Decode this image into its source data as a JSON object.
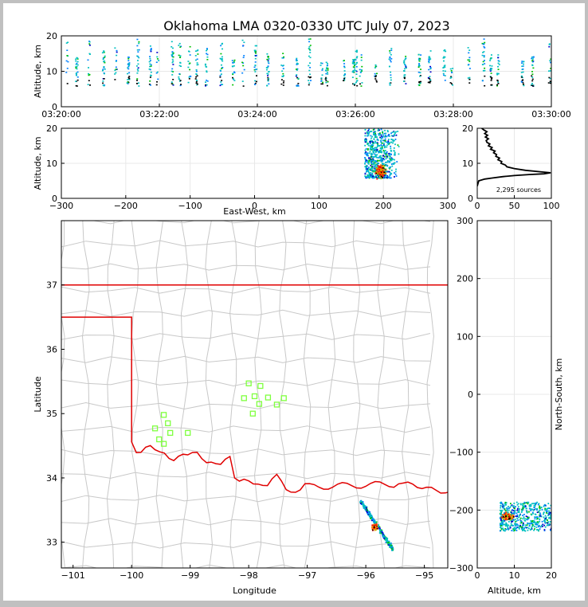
{
  "title": "Oklahoma LMA 0320-0330 UTC July 07, 2023",
  "colors": {
    "background": "#ffffff",
    "frame": "#c0c0c0",
    "state_border": "#e00000",
    "county_lines": "#c8c8c8",
    "station_marker": "#7fff3f",
    "source_scale": [
      "#0000c8",
      "#0080ff",
      "#00c0c0",
      "#00c000",
      "#c0c000",
      "#ff8000",
      "#ff0000",
      "#800000",
      "#000000"
    ]
  },
  "chart_data": [
    {
      "id": "time-height",
      "type": "scatter",
      "xlabel": "",
      "ylabel": "Altitude, km",
      "x_tick_labels": [
        "03:20:00",
        "03:22:00",
        "03:24:00",
        "03:26:00",
        "03:28:00",
        "03:30:00"
      ],
      "xlim_minutes": [
        0,
        10
      ],
      "ylim": [
        0,
        20
      ],
      "y_ticks": [
        0,
        10,
        20
      ],
      "grid": true,
      "flash_times_minutes": [
        0.1,
        0.3,
        0.55,
        0.85,
        1.1,
        1.35,
        1.55,
        1.8,
        1.95,
        2.25,
        2.4,
        2.6,
        2.75,
        2.95,
        3.25,
        3.5,
        3.7,
        3.95,
        4.2,
        4.5,
        4.8,
        5.05,
        5.3,
        5.4,
        5.75,
        5.95,
        6.0,
        6.1,
        6.4,
        6.7,
        7.0,
        7.3,
        7.5,
        7.8,
        7.95,
        8.3,
        8.6,
        8.75,
        8.9,
        9.4,
        9.6,
        9.95
      ]
    },
    {
      "id": "east-west-altitude",
      "type": "scatter",
      "xlabel": "East-West, km",
      "ylabel": "Altitude, km",
      "xlim": [
        -300,
        300
      ],
      "x_ticks": [
        -300,
        -200,
        -100,
        0,
        100,
        200,
        300
      ],
      "ylim": [
        0,
        20
      ],
      "y_ticks": [
        0,
        10,
        20
      ],
      "grid": true,
      "cluster": {
        "x_range_km": [
          170,
          225
        ],
        "alt_range_km": [
          6,
          20
        ],
        "core_x_km": 195,
        "core_alt_km": 8
      }
    },
    {
      "id": "altitude-histogram",
      "type": "line",
      "xlabel": "",
      "ylabel": "",
      "xlim": [
        0,
        100
      ],
      "x_ticks": [
        0,
        50,
        100
      ],
      "ylim": [
        0,
        20
      ],
      "y_ticks": [
        0,
        10,
        20
      ],
      "annotation": "2,295 sources",
      "profile": [
        [
          0,
          3.5
        ],
        [
          2,
          5
        ],
        [
          10,
          5.5
        ],
        [
          20,
          5.8
        ],
        [
          35,
          6.2
        ],
        [
          50,
          6.5
        ],
        [
          70,
          6.8
        ],
        [
          90,
          7.0
        ],
        [
          99,
          7.3
        ],
        [
          85,
          7.6
        ],
        [
          65,
          8.0
        ],
        [
          50,
          8.5
        ],
        [
          40,
          9.0
        ],
        [
          38,
          9.5
        ],
        [
          32,
          10.0
        ],
        [
          33,
          10.5
        ],
        [
          28,
          11.0
        ],
        [
          30,
          11.5
        ],
        [
          25,
          12.0
        ],
        [
          26,
          12.5
        ],
        [
          22,
          13.0
        ],
        [
          24,
          13.5
        ],
        [
          18,
          14.0
        ],
        [
          20,
          14.5
        ],
        [
          15,
          15.0
        ],
        [
          17,
          15.5
        ],
        [
          13,
          16.0
        ],
        [
          12,
          16.5
        ],
        [
          15,
          17.0
        ],
        [
          11,
          17.5
        ],
        [
          14,
          18.0
        ],
        [
          10,
          18.5
        ],
        [
          13,
          19.0
        ],
        [
          9,
          19.5
        ],
        [
          6,
          20.0
        ]
      ]
    },
    {
      "id": "plan-view",
      "type": "scatter",
      "xlabel": "Longitude",
      "ylabel": "Latitude",
      "xlim": [
        -101.2,
        -94.6
      ],
      "x_ticks": [
        -101,
        -100,
        -99,
        -98,
        -97,
        -96,
        -95
      ],
      "ylim": [
        32.6,
        38
      ],
      "y_ticks": [
        33,
        34,
        35,
        36,
        37
      ],
      "stations": [
        [
          -98.0,
          35.47
        ],
        [
          -97.8,
          35.43
        ],
        [
          -97.9,
          35.27
        ],
        [
          -98.08,
          35.24
        ],
        [
          -97.67,
          35.25
        ],
        [
          -97.82,
          35.15
        ],
        [
          -97.52,
          35.14
        ],
        [
          -97.4,
          35.24
        ],
        [
          -97.93,
          35.0
        ],
        [
          -99.45,
          34.98
        ],
        [
          -99.38,
          34.85
        ],
        [
          -99.6,
          34.77
        ],
        [
          -99.34,
          34.7
        ],
        [
          -99.04,
          34.7
        ],
        [
          -99.53,
          34.6
        ],
        [
          -99.45,
          34.53
        ]
      ],
      "cluster": {
        "lon_range": [
          -96.1,
          -95.55
        ],
        "lat_range": [
          32.9,
          33.65
        ],
        "core_lon": -95.85,
        "core_lat": 33.25
      }
    },
    {
      "id": "altitude-north-south",
      "type": "scatter",
      "xlabel": "Altitude, km",
      "ylabel": "North-South, km",
      "xlim": [
        0,
        20
      ],
      "x_ticks": [
        0,
        10,
        20
      ],
      "ylim": [
        -300,
        300
      ],
      "y_ticks": [
        -300,
        -200,
        -100,
        0,
        100,
        200,
        300
      ],
      "cluster": {
        "alt_range_km": [
          6,
          20
        ],
        "ns_range_km": [
          -235,
          -185
        ],
        "core_alt_km": 8,
        "core_ns_km": -210
      }
    }
  ]
}
